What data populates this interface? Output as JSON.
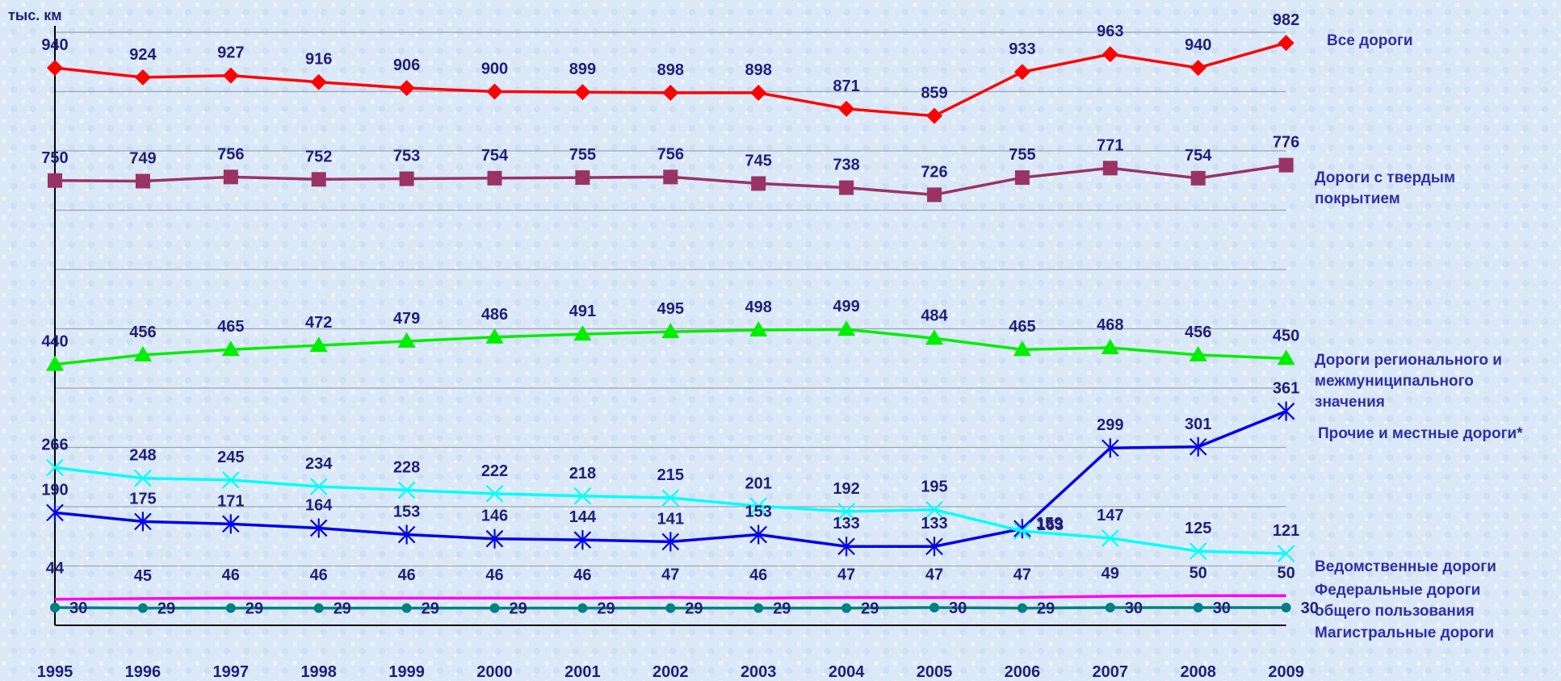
{
  "chart_data": {
    "type": "line",
    "unit_label": "тыс. км",
    "categories": [
      "1995",
      "1996",
      "1997",
      "1998",
      "1999",
      "2000",
      "2001",
      "2002",
      "2003",
      "2004",
      "2005",
      "2006",
      "2007",
      "2008",
      "2009"
    ],
    "ylim": [
      0,
      1000
    ],
    "grid": true,
    "legend_placement": "right",
    "series": [
      {
        "name": "Все дороги",
        "color": "#ff0000",
        "marker": "diamond",
        "values": [
          940,
          924,
          927,
          916,
          906,
          900,
          899,
          898,
          898,
          871,
          859,
          933,
          963,
          940,
          982
        ]
      },
      {
        "name": "Дороги с твердым покрытием",
        "color": "#993366",
        "marker": "square",
        "values": [
          750,
          749,
          756,
          752,
          753,
          754,
          755,
          756,
          745,
          738,
          726,
          755,
          771,
          754,
          776
        ]
      },
      {
        "name": "Дороги регионального и межмуниципального значения",
        "color": "#00ee00",
        "marker": "triangle",
        "values": [
          440,
          456,
          465,
          472,
          479,
          486,
          491,
          495,
          498,
          499,
          484,
          465,
          468,
          456,
          450
        ]
      },
      {
        "name": "Прочие и местные дороги*",
        "color": "#0000ee",
        "marker": "star",
        "values": [
          190,
          175,
          171,
          164,
          153,
          146,
          144,
          141,
          153,
          133,
          133,
          163,
          299,
          301,
          361
        ]
      },
      {
        "name": "Ведомственные дороги",
        "color": "#00ffff",
        "marker": "x",
        "values": [
          266,
          248,
          245,
          234,
          228,
          222,
          218,
          215,
          201,
          192,
          195,
          159,
          147,
          125,
          121
        ]
      },
      {
        "name": "Федеральные дороги общего пользования",
        "color": "#ff00ff",
        "marker": "none",
        "values": [
          44,
          45,
          46,
          46,
          46,
          46,
          46,
          47,
          46,
          47,
          47,
          47,
          49,
          50,
          50
        ]
      },
      {
        "name": "Магистральные дороги",
        "color": "#008080",
        "marker": "circle",
        "values": [
          30,
          29,
          29,
          29,
          29,
          29,
          29,
          29,
          29,
          29,
          30,
          29,
          30,
          30,
          30
        ]
      }
    ]
  }
}
